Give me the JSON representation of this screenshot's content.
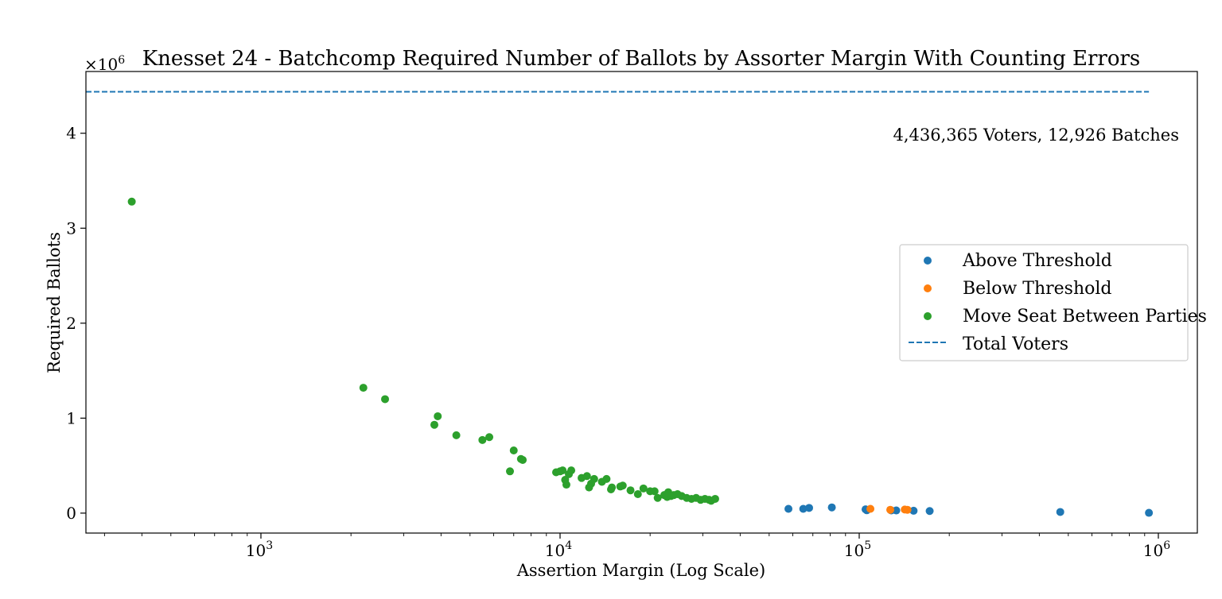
{
  "chart_data": {
    "type": "scatter",
    "title": "Knesset 24 - Batchcomp Required Number of Ballots by Assorter Margin With Counting Errors",
    "xlabel": "Assertion Margin (Log Scale)",
    "ylabel": "Required Ballots",
    "x_scale": "log",
    "xlim": [
      260,
      1350000
    ],
    "ylim": [
      -210000,
      4650000
    ],
    "y_multiplier_label": "×10",
    "y_multiplier_exp": "6",
    "x_ticks": [
      {
        "value": 1000,
        "base": "10",
        "exp": "3"
      },
      {
        "value": 10000,
        "base": "10",
        "exp": "4"
      },
      {
        "value": 100000,
        "base": "10",
        "exp": "5"
      },
      {
        "value": 1000000,
        "base": "10",
        "exp": "6"
      }
    ],
    "y_ticks": [
      {
        "value": 0,
        "label": "0"
      },
      {
        "value": 1000000,
        "label": "1"
      },
      {
        "value": 2000000,
        "label": "2"
      },
      {
        "value": 3000000,
        "label": "3"
      },
      {
        "value": 4000000,
        "label": "4"
      }
    ],
    "annotation": "4,436,365 Voters, 12,926 Batches",
    "total_voters": 4436365,
    "total_voters_line_xrange": [
      260,
      930000
    ],
    "legend_position": "center-right",
    "series": [
      {
        "name": "Above Threshold",
        "color": "#1f77b4",
        "marker": "circle",
        "points": [
          [
            58000,
            45000
          ],
          [
            65000,
            45000
          ],
          [
            68000,
            55000
          ],
          [
            81000,
            60000
          ],
          [
            105000,
            40000
          ],
          [
            106000,
            30000
          ],
          [
            128000,
            28000
          ],
          [
            133000,
            28000
          ],
          [
            152000,
            25000
          ],
          [
            172000,
            22000
          ],
          [
            470000,
            12000
          ],
          [
            930000,
            3000
          ]
        ]
      },
      {
        "name": "Below Threshold",
        "color": "#ff7f0e",
        "marker": "circle",
        "points": [
          [
            109000,
            45000
          ],
          [
            127000,
            35000
          ],
          [
            142000,
            38000
          ],
          [
            145000,
            35000
          ]
        ]
      },
      {
        "name": "Move Seat Between Parties",
        "color": "#2ca02c",
        "marker": "circle",
        "points": [
          [
            370,
            3280000
          ],
          [
            2200,
            1320000
          ],
          [
            2600,
            1200000
          ],
          [
            3800,
            930000
          ],
          [
            3900,
            1020000
          ],
          [
            4500,
            820000
          ],
          [
            5500,
            770000
          ],
          [
            5800,
            800000
          ],
          [
            6800,
            440000
          ],
          [
            7000,
            660000
          ],
          [
            7400,
            570000
          ],
          [
            7500,
            560000
          ],
          [
            9700,
            430000
          ],
          [
            10000,
            440000
          ],
          [
            10200,
            450000
          ],
          [
            10400,
            350000
          ],
          [
            10500,
            300000
          ],
          [
            10700,
            410000
          ],
          [
            10900,
            450000
          ],
          [
            11800,
            370000
          ],
          [
            12300,
            390000
          ],
          [
            12500,
            270000
          ],
          [
            12700,
            310000
          ],
          [
            13000,
            360000
          ],
          [
            13800,
            330000
          ],
          [
            14300,
            360000
          ],
          [
            14800,
            250000
          ],
          [
            14900,
            270000
          ],
          [
            15900,
            280000
          ],
          [
            16200,
            290000
          ],
          [
            17200,
            240000
          ],
          [
            18200,
            200000
          ],
          [
            19000,
            260000
          ],
          [
            20000,
            230000
          ],
          [
            20700,
            230000
          ],
          [
            21200,
            160000
          ],
          [
            22300,
            190000
          ],
          [
            22800,
            170000
          ],
          [
            23000,
            220000
          ],
          [
            23500,
            180000
          ],
          [
            24000,
            190000
          ],
          [
            24700,
            200000
          ],
          [
            25500,
            180000
          ],
          [
            26500,
            160000
          ],
          [
            27500,
            150000
          ],
          [
            28500,
            160000
          ],
          [
            29500,
            140000
          ],
          [
            30500,
            150000
          ],
          [
            31500,
            140000
          ],
          [
            32000,
            130000
          ],
          [
            33000,
            150000
          ]
        ]
      },
      {
        "name": "Total Voters",
        "color": "#1f77b4",
        "marker": "dashed-line"
      }
    ]
  }
}
